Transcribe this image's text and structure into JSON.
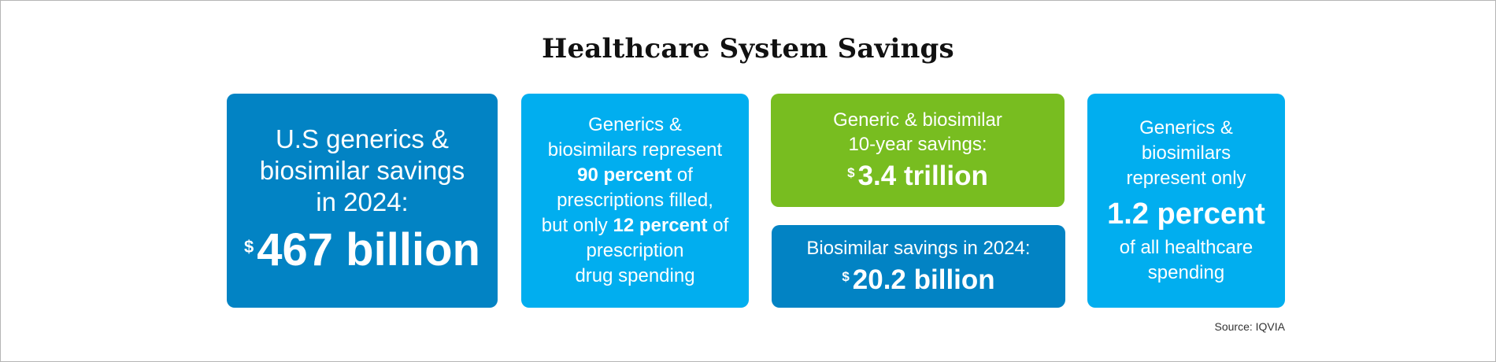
{
  "title": "Healthcare System Savings",
  "colors": {
    "dark_blue": "#0283c4",
    "light_blue": "#01aeef",
    "green": "#78bd20"
  },
  "cards": {
    "us_savings": {
      "lines": [
        "U.S generics &",
        "biosimilar savings",
        "in 2024:"
      ],
      "currency": "$",
      "amount": "467 billion"
    },
    "share": {
      "line1": "Generics &",
      "line2": "biosimilars represent",
      "bold1": "90 percent",
      "after_bold1": " of",
      "line4": "prescriptions filled,",
      "before_bold2": "but only ",
      "bold2": "12 percent",
      "after_bold2": " of",
      "line6": "prescription",
      "line7": "drug spending"
    },
    "ten_year": {
      "lines": [
        "Generic & biosimilar",
        "10-year savings:"
      ],
      "currency": "$",
      "amount": "3.4 trillion"
    },
    "biosimilar_2024": {
      "label": "Biosimilar savings in 2024:",
      "currency": "$",
      "amount": "20.2 billion"
    },
    "spending_share": {
      "lines": [
        "Generics &",
        "biosimilars",
        "represent only"
      ],
      "amount": "1.2 percent",
      "after_lines": [
        "of all healthcare",
        "spending"
      ]
    }
  },
  "source": "Source: IQVIA"
}
